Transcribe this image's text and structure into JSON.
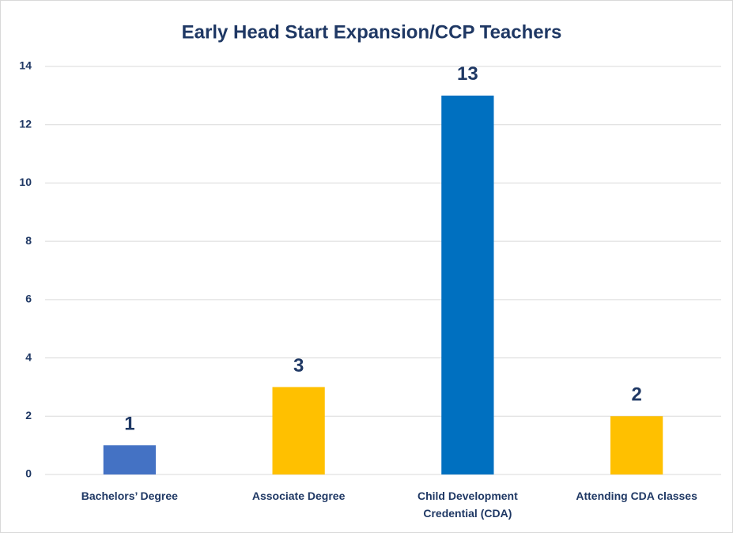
{
  "chart_data": {
    "type": "bar",
    "title": "Early Head Start Expansion/CCP Teachers",
    "categories": [
      "Bachelors’ Degree",
      "Associate Degree",
      "Child Development Credential (CDA)",
      "Attending CDA classes"
    ],
    "values": [
      1,
      3,
      13,
      2
    ],
    "colors": [
      "#4472c4",
      "#ffc000",
      "#0070c0",
      "#ffc000"
    ],
    "ylim": [
      0,
      14
    ],
    "yticks": [
      0,
      2,
      4,
      6,
      8,
      10,
      12,
      14
    ],
    "grid": true
  }
}
